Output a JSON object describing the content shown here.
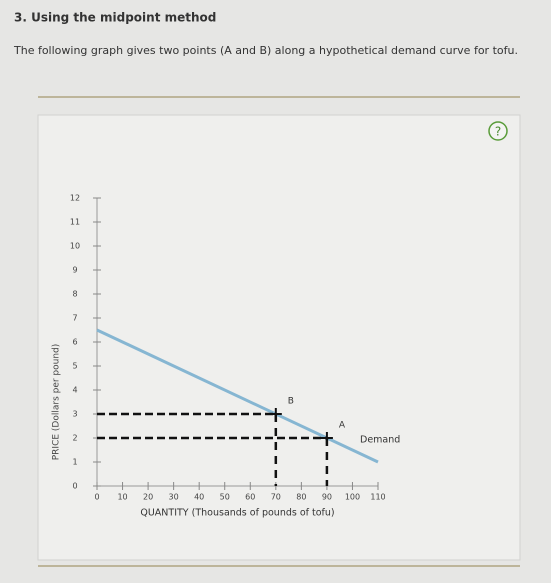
{
  "header": {
    "title": "3. Using the midpoint method"
  },
  "prompt": "The following graph gives two points (A and B) along a hypothetical demand curve for tofu.",
  "help": "?",
  "chart_data": {
    "type": "line",
    "xlabel": "QUANTITY (Thousands of pounds of tofu)",
    "ylabel": "PRICE (Dollars per pound)",
    "x": [
      0,
      110
    ],
    "series": [
      {
        "name": "Demand",
        "color": "#86b6d2",
        "values": [
          6.5,
          1
        ]
      }
    ],
    "points": [
      {
        "label": "A",
        "x": 90,
        "y": 2
      },
      {
        "label": "B",
        "x": 70,
        "y": 3
      }
    ],
    "xlim": [
      0,
      110
    ],
    "ylim": [
      0,
      12
    ],
    "xticks": [
      0,
      10,
      20,
      30,
      40,
      50,
      60,
      70,
      80,
      90,
      100,
      110
    ],
    "yticks": [
      0,
      1,
      2,
      3,
      4,
      5,
      6,
      7,
      8,
      9,
      10,
      11,
      12
    ]
  }
}
